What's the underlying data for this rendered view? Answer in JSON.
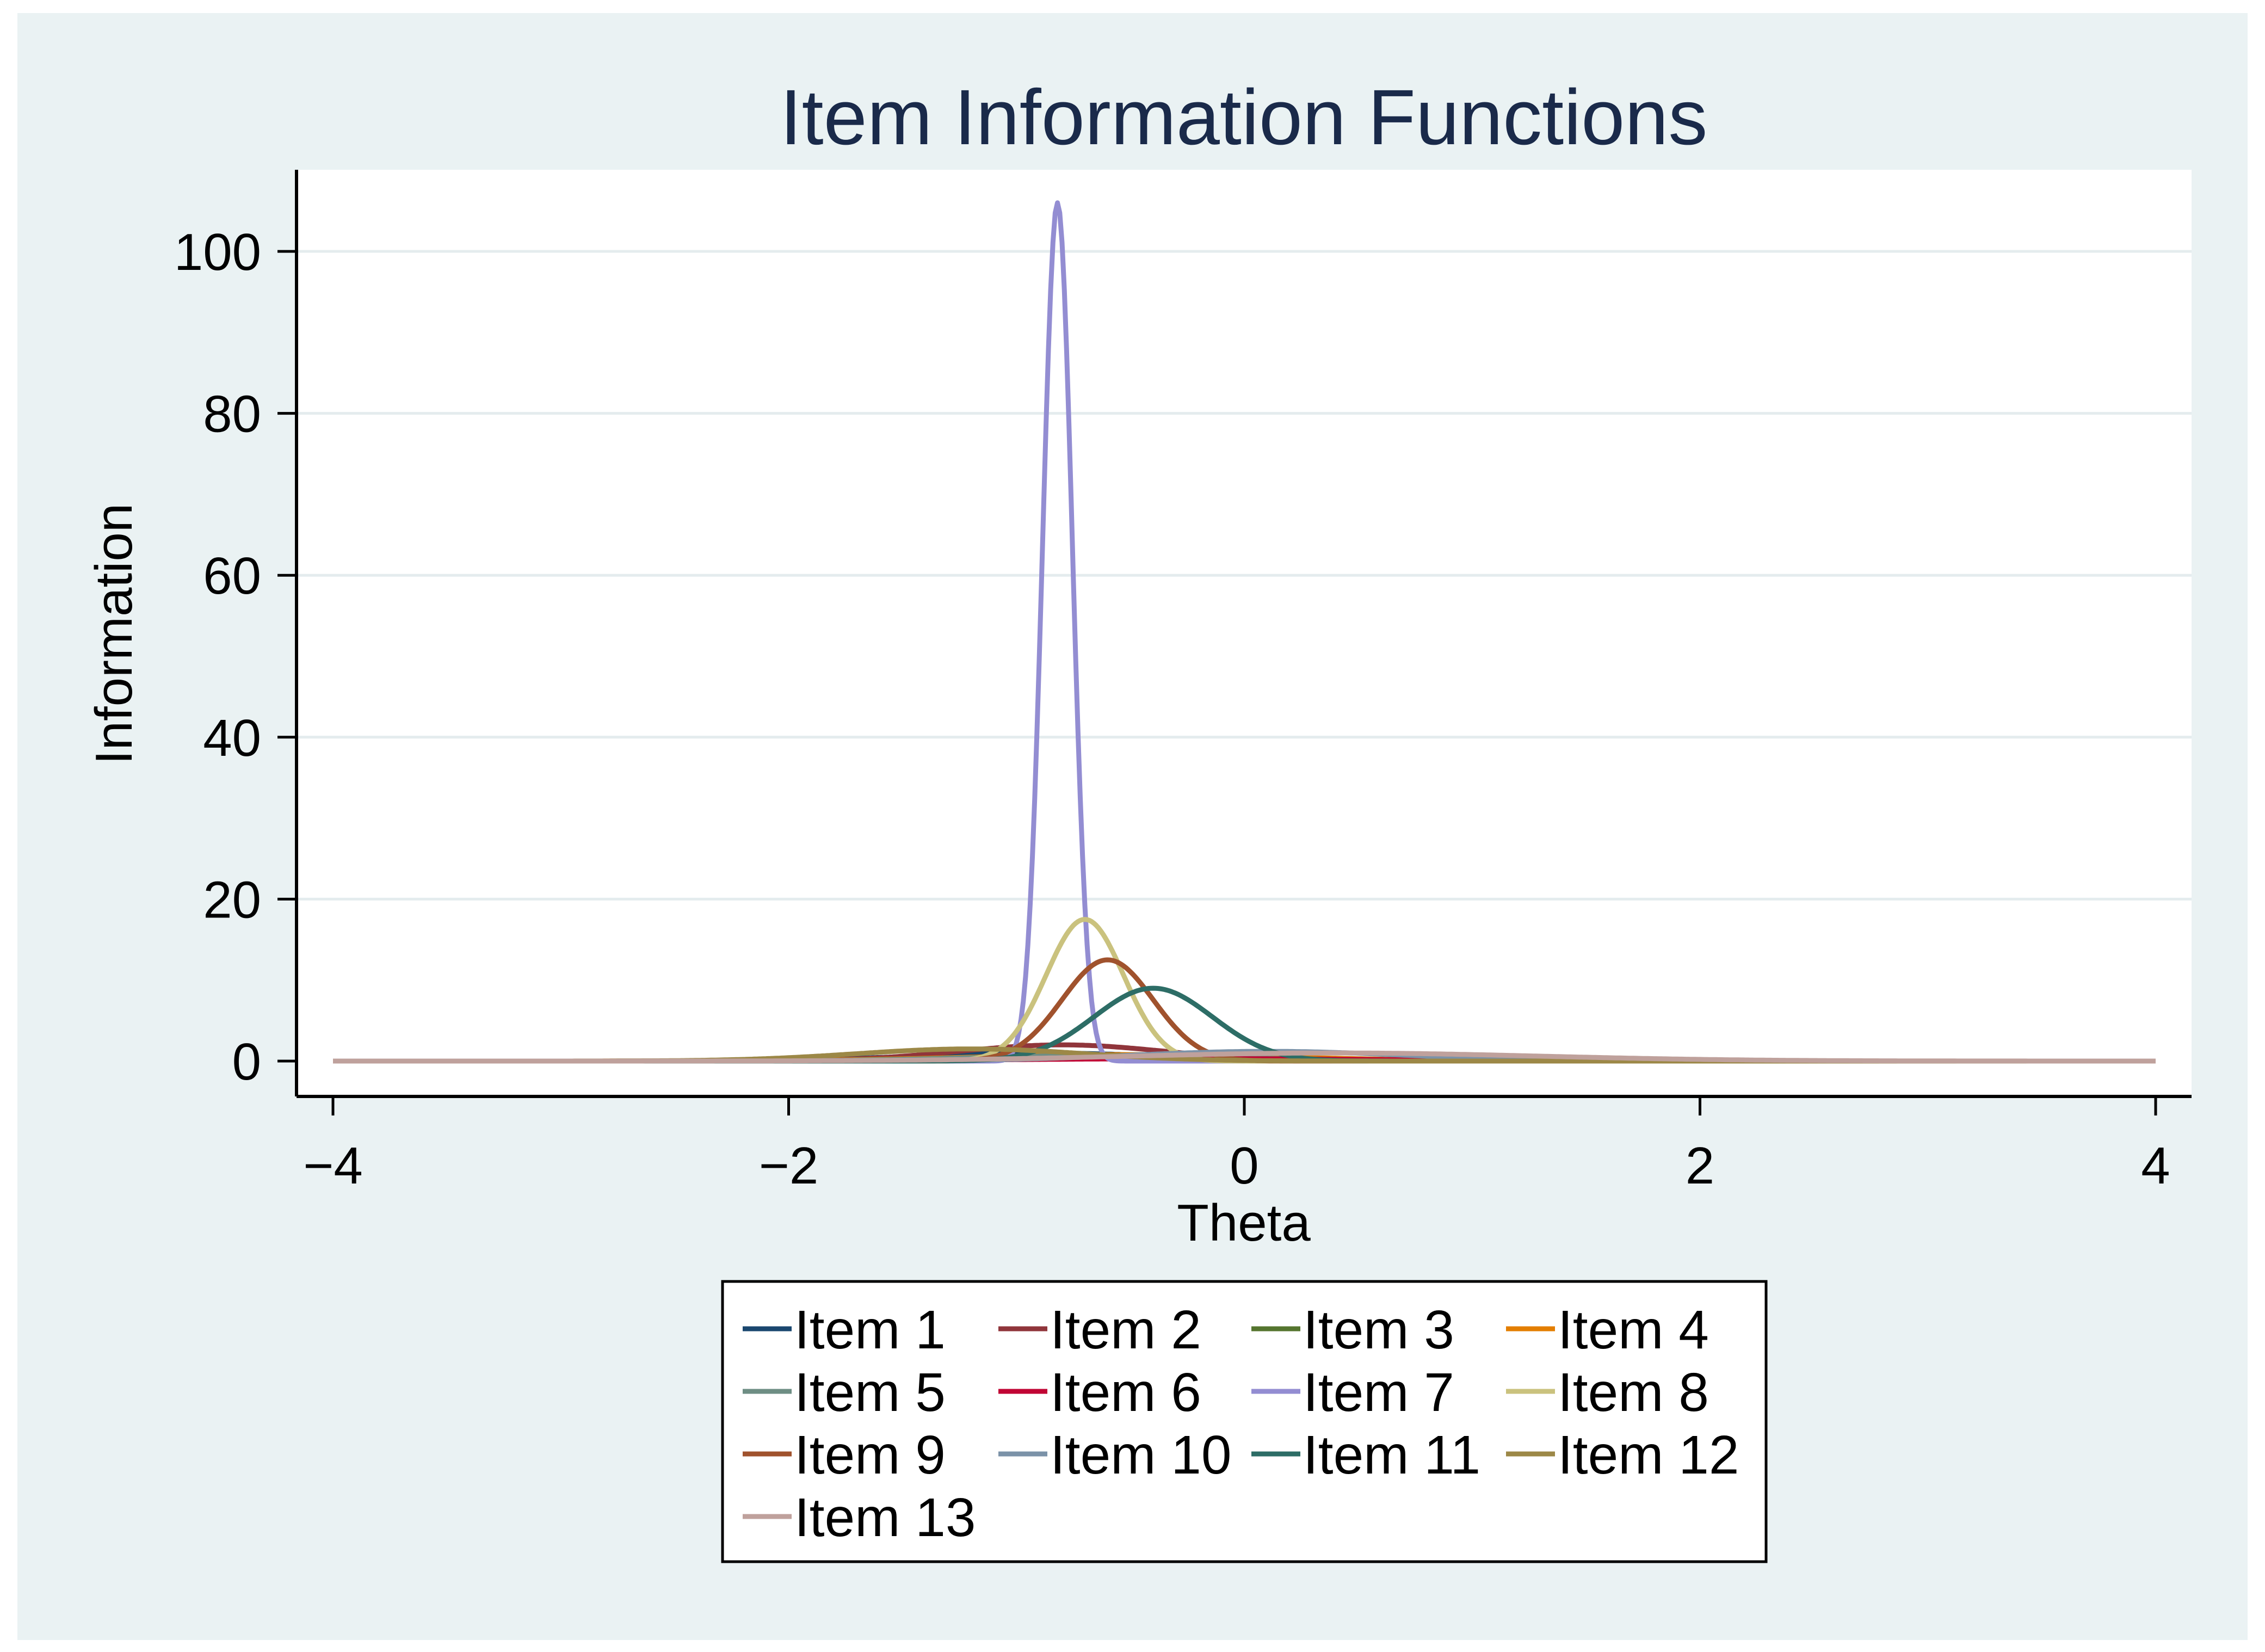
{
  "chart_data": {
    "type": "line",
    "title": "Item Information Functions",
    "xlabel": "Theta",
    "ylabel": "Information",
    "xlim": [
      -4,
      4
    ],
    "ylim": [
      0,
      110
    ],
    "xticks": [
      -4,
      -2,
      0,
      2,
      4
    ],
    "xtick_labels": [
      "−4",
      "−2",
      "0",
      "2",
      "4"
    ],
    "yticks": [
      0,
      20,
      40,
      60,
      80,
      100
    ],
    "ytick_labels": [
      "0",
      "20",
      "40",
      "60",
      "80",
      "100"
    ],
    "grid": "horizontal",
    "legend": "bottom",
    "series": [
      {
        "name": "Item 1",
        "color": "#1a476f",
        "peak": 1.0,
        "center": -0.9,
        "width": 0.55
      },
      {
        "name": "Item 2",
        "color": "#90353b",
        "peak": 2.0,
        "center": -0.8,
        "width": 0.45
      },
      {
        "name": "Item 3",
        "color": "#55752f",
        "peak": 0.6,
        "center": -0.7,
        "width": 0.6
      },
      {
        "name": "Item 4",
        "color": "#e37e00",
        "peak": 0.8,
        "center": -0.5,
        "width": 0.7
      },
      {
        "name": "Item 5",
        "color": "#6e8e84",
        "peak": 0.7,
        "center": -0.6,
        "width": 0.6
      },
      {
        "name": "Item 6",
        "color": "#c10534",
        "peak": 0.3,
        "center": -0.2,
        "width": 0.8
      },
      {
        "name": "Item 7",
        "color": "#938dd2",
        "peak": 106,
        "center": -0.82,
        "width": 0.065
      },
      {
        "name": "Item 8",
        "color": "#cac27e",
        "peak": 17.5,
        "center": -0.7,
        "width": 0.17
      },
      {
        "name": "Item 9",
        "color": "#a0522d",
        "peak": 12.5,
        "center": -0.6,
        "width": 0.2
      },
      {
        "name": "Item 10",
        "color": "#7b92a8",
        "peak": 1.2,
        "center": 0.1,
        "width": 0.6
      },
      {
        "name": "Item 11",
        "color": "#2d6d66",
        "peak": 9.0,
        "center": -0.4,
        "width": 0.26
      },
      {
        "name": "Item 12",
        "color": "#9c8847",
        "peak": 1.5,
        "center": -1.2,
        "width": 0.5
      },
      {
        "name": "Item 13",
        "color": "#bfa19c",
        "peak": 1.0,
        "center": 0.4,
        "width": 0.9
      }
    ]
  }
}
